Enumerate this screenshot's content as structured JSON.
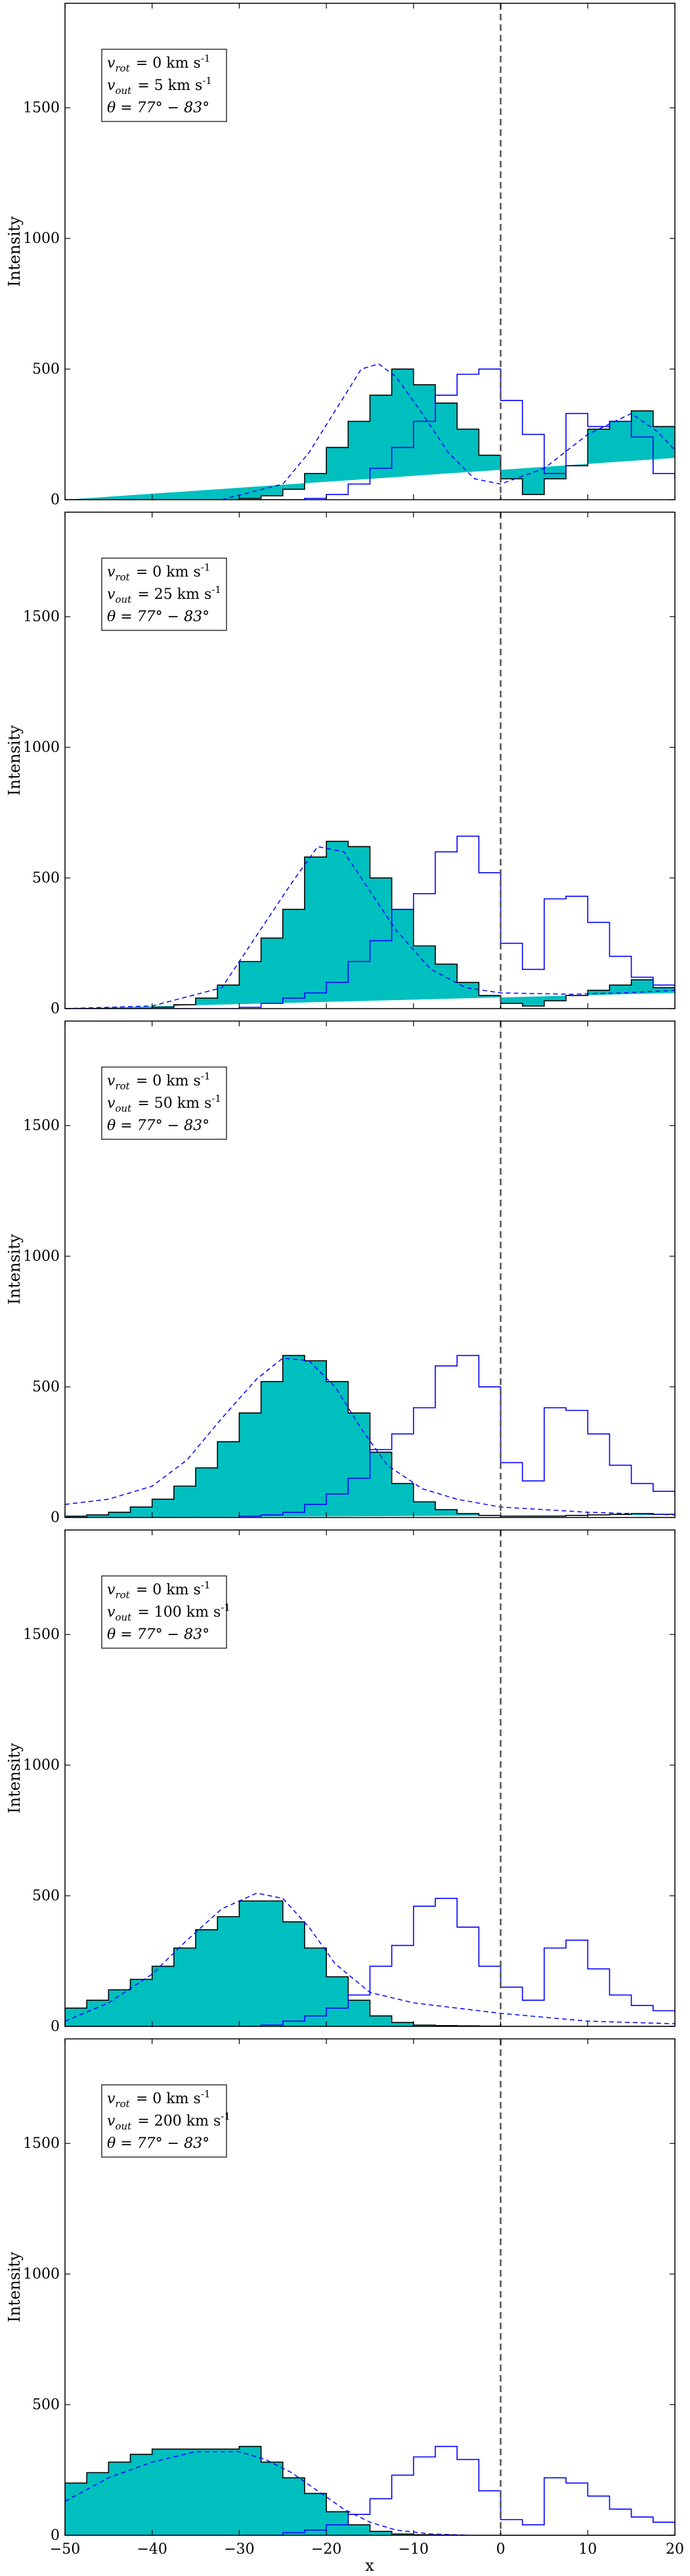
{
  "figure": {
    "xlabel": "x",
    "ylabel": "Intensity",
    "colors": {
      "fill": "#00BFBF",
      "edge": "#000000",
      "line": "#0000FF",
      "zero_line": "#555555"
    }
  },
  "chart_data": [
    {
      "type": "histogram",
      "annotation": [
        "v_rot = 0 km s^-1",
        "v_out = 5 km s^-1",
        "θ = 77° − 83°"
      ],
      "xlim": [
        -50,
        20
      ],
      "ylim": [
        0,
        1900
      ],
      "xticks": [
        -50,
        -40,
        -30,
        -20,
        -10,
        0,
        10,
        20
      ],
      "yticks": [
        0,
        500,
        1000,
        1500
      ],
      "bin_edges": [
        -50,
        -47.5,
        -45,
        -42.5,
        -40,
        -37.5,
        -35,
        -32.5,
        -30,
        -27.5,
        -25,
        -22.5,
        -20,
        -17.5,
        -15,
        -12.5,
        -10,
        -7.5,
        -5,
        -2.5,
        0,
        2.5,
        5,
        7.5,
        10,
        12.5,
        15,
        17.5,
        20
      ],
      "filled_hist": [
        0,
        0,
        0,
        0,
        0,
        0,
        0,
        0,
        5,
        15,
        40,
        100,
        200,
        300,
        400,
        500,
        440,
        370,
        270,
        170,
        80,
        20,
        80,
        130,
        270,
        300,
        340,
        280,
        160
      ],
      "blue_hist": [
        0,
        0,
        0,
        0,
        0,
        0,
        0,
        0,
        0,
        0,
        0,
        5,
        20,
        60,
        120,
        200,
        300,
        400,
        480,
        500,
        380,
        250,
        100,
        330,
        280,
        300,
        240,
        100,
        80
      ],
      "fit_dashed": [
        [
          -32,
          0
        ],
        [
          -25,
          60
        ],
        [
          -22,
          180
        ],
        [
          -19,
          340
        ],
        [
          -16,
          500
        ],
        [
          -14,
          520
        ],
        [
          -12,
          470
        ],
        [
          -9,
          330
        ],
        [
          -6,
          180
        ],
        [
          -3,
          80
        ],
        [
          0,
          60
        ],
        [
          5,
          120
        ],
        [
          10,
          250
        ],
        [
          15,
          330
        ],
        [
          18,
          260
        ],
        [
          20,
          190
        ]
      ]
    },
    {
      "type": "histogram",
      "annotation": [
        "v_rot = 0 km s^-1",
        "v_out = 25 km s^-1",
        "θ = 77° − 83°"
      ],
      "xlim": [
        -50,
        20
      ],
      "ylim": [
        0,
        1900
      ],
      "xticks": [
        -50,
        -40,
        -30,
        -20,
        -10,
        0,
        10,
        20
      ],
      "yticks": [
        0,
        500,
        1000,
        1500
      ],
      "bin_edges": [
        -50,
        -47.5,
        -45,
        -42.5,
        -40,
        -37.5,
        -35,
        -32.5,
        -30,
        -27.5,
        -25,
        -22.5,
        -20,
        -17.5,
        -15,
        -12.5,
        -10,
        -7.5,
        -5,
        -2.5,
        0,
        2.5,
        5,
        7.5,
        10,
        12.5,
        15,
        17.5,
        20
      ],
      "filled_hist": [
        0,
        0,
        0,
        0,
        5,
        15,
        40,
        90,
        180,
        270,
        380,
        580,
        640,
        620,
        500,
        380,
        240,
        170,
        100,
        50,
        20,
        10,
        30,
        50,
        70,
        90,
        110,
        80,
        60
      ],
      "blue_hist": [
        0,
        0,
        0,
        0,
        0,
        0,
        0,
        0,
        5,
        20,
        40,
        60,
        100,
        180,
        260,
        380,
        440,
        600,
        660,
        520,
        250,
        150,
        420,
        430,
        330,
        200,
        120,
        90,
        60
      ],
      "fit_dashed": [
        [
          -50,
          0
        ],
        [
          -40,
          10
        ],
        [
          -32,
          80
        ],
        [
          -28,
          280
        ],
        [
          -24,
          480
        ],
        [
          -21,
          620
        ],
        [
          -18,
          600
        ],
        [
          -15,
          450
        ],
        [
          -12,
          300
        ],
        [
          -8,
          150
        ],
        [
          -4,
          80
        ],
        [
          0,
          60
        ],
        [
          8,
          55
        ],
        [
          14,
          60
        ],
        [
          20,
          70
        ]
      ]
    },
    {
      "type": "histogram",
      "annotation": [
        "v_rot = 0 km s^-1",
        "v_out = 50 km s^-1",
        "θ = 77° − 83°"
      ],
      "xlim": [
        -50,
        20
      ],
      "ylim": [
        0,
        1900
      ],
      "xticks": [
        -50,
        -40,
        -30,
        -20,
        -10,
        0,
        10,
        20
      ],
      "yticks": [
        0,
        500,
        1000,
        1500
      ],
      "bin_edges": [
        -50,
        -47.5,
        -45,
        -42.5,
        -40,
        -37.5,
        -35,
        -32.5,
        -30,
        -27.5,
        -25,
        -22.5,
        -20,
        -17.5,
        -15,
        -12.5,
        -10,
        -7.5,
        -5,
        -2.5,
        0,
        2.5,
        5,
        7.5,
        10,
        12.5,
        15,
        17.5,
        20
      ],
      "filled_hist": [
        5,
        10,
        20,
        40,
        70,
        120,
        190,
        290,
        400,
        520,
        620,
        600,
        520,
        400,
        250,
        130,
        60,
        30,
        15,
        8,
        5,
        5,
        5,
        8,
        10,
        12,
        15,
        12,
        10
      ],
      "blue_hist": [
        0,
        0,
        0,
        0,
        0,
        0,
        0,
        0,
        5,
        10,
        20,
        50,
        90,
        150,
        260,
        320,
        420,
        580,
        620,
        500,
        210,
        140,
        420,
        410,
        320,
        200,
        130,
        100,
        80
      ],
      "fit_dashed": [
        [
          -50,
          50
        ],
        [
          -45,
          70
        ],
        [
          -40,
          120
        ],
        [
          -36,
          220
        ],
        [
          -32,
          380
        ],
        [
          -28,
          530
        ],
        [
          -25,
          610
        ],
        [
          -22,
          600
        ],
        [
          -19,
          500
        ],
        [
          -16,
          340
        ],
        [
          -13,
          200
        ],
        [
          -9,
          110
        ],
        [
          -5,
          70
        ],
        [
          0,
          40
        ],
        [
          10,
          20
        ],
        [
          20,
          10
        ]
      ]
    },
    {
      "type": "histogram",
      "annotation": [
        "v_rot = 0 km s^-1",
        "v_out = 100 km s^-1",
        "θ = 77° − 83°"
      ],
      "xlim": [
        -50,
        20
      ],
      "ylim": [
        0,
        1900
      ],
      "xticks": [
        -50,
        -40,
        -30,
        -20,
        -10,
        0,
        10,
        20
      ],
      "yticks": [
        0,
        500,
        1000,
        1500
      ],
      "bin_edges": [
        -50,
        -47.5,
        -45,
        -42.5,
        -40,
        -37.5,
        -35,
        -32.5,
        -30,
        -27.5,
        -25,
        -22.5,
        -20,
        -17.5,
        -15,
        -12.5,
        -10,
        -7.5,
        -5,
        -2.5,
        0,
        2.5,
        5,
        7.5,
        10,
        12.5,
        15,
        17.5,
        20
      ],
      "filled_hist": [
        70,
        100,
        140,
        180,
        230,
        300,
        370,
        420,
        480,
        480,
        400,
        300,
        190,
        100,
        40,
        15,
        5,
        3,
        2,
        1,
        0,
        0,
        0,
        0,
        0,
        0,
        0,
        0,
        0
      ],
      "blue_hist": [
        0,
        0,
        0,
        0,
        0,
        0,
        0,
        0,
        0,
        5,
        20,
        40,
        70,
        120,
        230,
        310,
        460,
        490,
        380,
        230,
        150,
        100,
        300,
        330,
        220,
        120,
        80,
        60,
        50
      ],
      "fit_dashed": [
        [
          -50,
          20
        ],
        [
          -45,
          90
        ],
        [
          -40,
          200
        ],
        [
          -36,
          330
        ],
        [
          -32,
          450
        ],
        [
          -28,
          510
        ],
        [
          -25,
          490
        ],
        [
          -22,
          380
        ],
        [
          -19,
          240
        ],
        [
          -15,
          130
        ],
        [
          -10,
          90
        ],
        [
          -5,
          70
        ],
        [
          0,
          50
        ],
        [
          10,
          20
        ],
        [
          20,
          10
        ]
      ]
    },
    {
      "type": "histogram",
      "annotation": [
        "v_rot = 0 km s^-1",
        "v_out = 200 km s^-1",
        "θ = 77° − 83°"
      ],
      "xlim": [
        -50,
        20
      ],
      "ylim": [
        0,
        1900
      ],
      "xticks": [
        -50,
        -40,
        -30,
        -20,
        -10,
        0,
        10,
        20
      ],
      "yticks": [
        0,
        500,
        1000,
        1500
      ],
      "bin_edges": [
        -50,
        -47.5,
        -45,
        -42.5,
        -40,
        -37.5,
        -35,
        -32.5,
        -30,
        -27.5,
        -25,
        -22.5,
        -20,
        -17.5,
        -15,
        -12.5,
        -10,
        -7.5,
        -5,
        -2.5,
        0,
        2.5,
        5,
        7.5,
        10,
        12.5,
        15,
        17.5,
        20
      ],
      "filled_hist": [
        200,
        240,
        280,
        310,
        330,
        330,
        330,
        330,
        340,
        280,
        220,
        160,
        90,
        40,
        15,
        5,
        2,
        1,
        0,
        0,
        0,
        0,
        0,
        0,
        0,
        0,
        0,
        0,
        0
      ],
      "blue_hist": [
        0,
        0,
        0,
        0,
        0,
        0,
        0,
        0,
        0,
        0,
        10,
        20,
        40,
        80,
        140,
        230,
        300,
        340,
        290,
        170,
        60,
        40,
        220,
        200,
        150,
        100,
        70,
        50,
        40
      ],
      "fit_dashed": [
        [
          -50,
          130
        ],
        [
          -45,
          220
        ],
        [
          -40,
          280
        ],
        [
          -35,
          320
        ],
        [
          -30,
          320
        ],
        [
          -27,
          290
        ],
        [
          -24,
          240
        ],
        [
          -21,
          170
        ],
        [
          -18,
          100
        ],
        [
          -15,
          50
        ],
        [
          -12,
          20
        ],
        [
          -8,
          5
        ],
        [
          -4,
          1
        ]
      ]
    }
  ]
}
